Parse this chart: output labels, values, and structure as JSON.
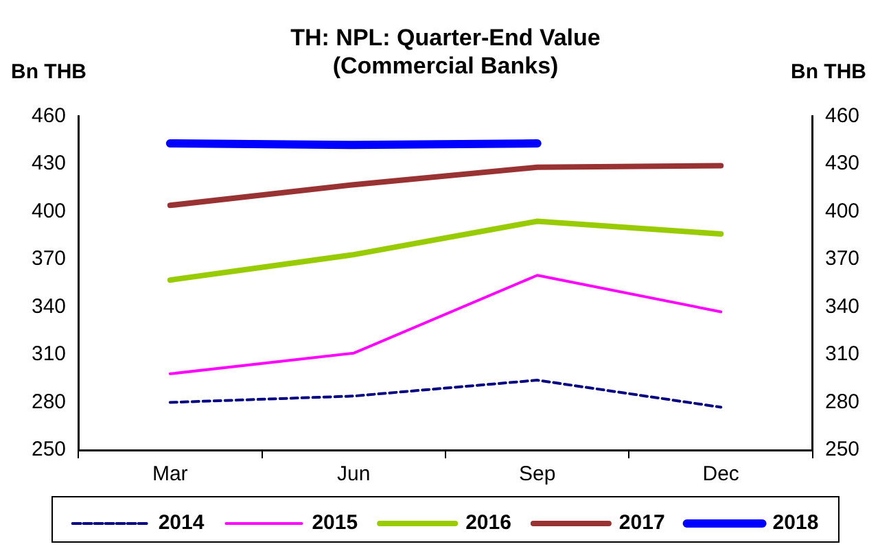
{
  "chart_data": {
    "type": "line",
    "title": "TH: NPL: Quarter-End Value\n(Commercial Banks)",
    "ylabel": "Bn THB",
    "y2label": "Bn THB",
    "categories": [
      "Mar",
      "Jun",
      "Sep",
      "Dec"
    ],
    "series": [
      {
        "name": "2014",
        "color": "#000080",
        "line_style": "dashed",
        "values": [
          280,
          284,
          294,
          277
        ]
      },
      {
        "name": "2015",
        "color": "#ff00ff",
        "values": [
          298,
          311,
          360,
          337
        ]
      },
      {
        "name": "2016",
        "color": "#99cc00",
        "values": [
          357,
          373,
          394,
          386
        ]
      },
      {
        "name": "2017",
        "color": "#993333",
        "values": [
          404,
          417,
          428,
          429
        ]
      },
      {
        "name": "2018",
        "color": "#0000ff",
        "values": [
          443,
          442,
          443,
          null
        ]
      }
    ],
    "ylim": [
      250,
      460
    ],
    "yticks": [
      250,
      280,
      310,
      340,
      370,
      400,
      430,
      460
    ],
    "y2lim": [
      250,
      460
    ],
    "y2ticks": [
      250,
      280,
      310,
      340,
      370,
      400,
      430,
      460
    ],
    "grid": false,
    "legend": "bottom",
    "marker": "none",
    "line_style": "solid"
  }
}
